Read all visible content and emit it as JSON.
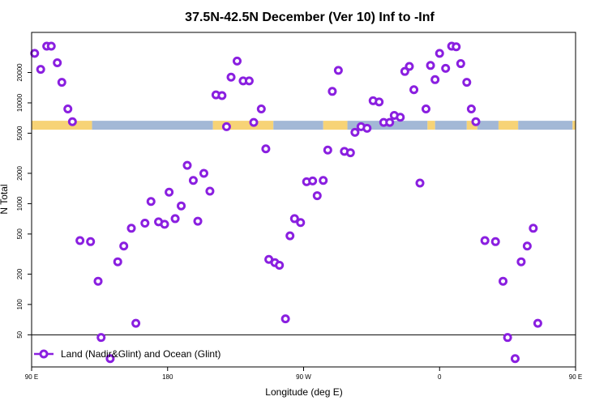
{
  "chart_data": {
    "type": "scatter",
    "title": "37.5N-42.5N December (Ver 10)   Inf to -Inf",
    "xlabel": "Longitude (deg E)",
    "ylabel": "N Total",
    "y_scale": "log",
    "xlim": [
      90,
      450
    ],
    "ylim": [
      24,
      50000
    ],
    "x_ticks": [
      {
        "value": 90,
        "label": "90 E"
      },
      {
        "value": 180,
        "label": "180"
      },
      {
        "value": 270,
        "label": "90 W"
      },
      {
        "value": 360,
        "label": "0"
      },
      {
        "value": 450,
        "label": "90 E"
      }
    ],
    "y_ticks": [
      50,
      100,
      200,
      500,
      1000,
      2000,
      5000,
      10000,
      20000
    ],
    "reference_line": 50,
    "band": {
      "y_value": 6000,
      "segments": [
        {
          "start": 90,
          "end": 130,
          "surface": "land"
        },
        {
          "start": 130,
          "end": 210,
          "surface": "ocean"
        },
        {
          "start": 210,
          "end": 250,
          "surface": "land"
        },
        {
          "start": 250,
          "end": 283,
          "surface": "ocean"
        },
        {
          "start": 283,
          "end": 299,
          "surface": "land"
        },
        {
          "start": 299,
          "end": 352,
          "surface": "ocean"
        },
        {
          "start": 352,
          "end": 357,
          "surface": "land"
        },
        {
          "start": 357,
          "end": 378,
          "surface": "ocean"
        },
        {
          "start": 378,
          "end": 385,
          "surface": "land"
        },
        {
          "start": 385,
          "end": 399,
          "surface": "ocean"
        },
        {
          "start": 399,
          "end": 412,
          "surface": "land"
        },
        {
          "start": 412,
          "end": 448,
          "surface": "ocean"
        },
        {
          "start": 448,
          "end": 450,
          "surface": "land"
        }
      ]
    },
    "colors": {
      "series": "#8a1fe0",
      "land": "#f7d376",
      "ocean": "#a3b8d6",
      "axis": "#000000"
    },
    "legend": {
      "position": "bottom-left"
    },
    "series": [
      {
        "name": "Land (Nadir&Glint) and Ocean (Glint)",
        "points": [
          {
            "x": 92,
            "y": 31000
          },
          {
            "x": 96,
            "y": 21500
          },
          {
            "x": 100,
            "y": 36500
          },
          {
            "x": 103,
            "y": 36500
          },
          {
            "x": 107,
            "y": 25000
          },
          {
            "x": 110,
            "y": 16000
          },
          {
            "x": 114,
            "y": 8700
          },
          {
            "x": 117,
            "y": 6500
          },
          {
            "x": 122,
            "y": 430
          },
          {
            "x": 129,
            "y": 420
          },
          {
            "x": 134,
            "y": 170
          },
          {
            "x": 136,
            "y": 47
          },
          {
            "x": 142,
            "y": 29
          },
          {
            "x": 147,
            "y": 265
          },
          {
            "x": 151,
            "y": 380
          },
          {
            "x": 156,
            "y": 570
          },
          {
            "x": 159,
            "y": 65
          },
          {
            "x": 165,
            "y": 640
          },
          {
            "x": 169,
            "y": 1050
          },
          {
            "x": 174,
            "y": 660
          },
          {
            "x": 178,
            "y": 625
          },
          {
            "x": 181,
            "y": 1300
          },
          {
            "x": 185,
            "y": 710
          },
          {
            "x": 189,
            "y": 950
          },
          {
            "x": 193,
            "y": 2400
          },
          {
            "x": 197,
            "y": 1700
          },
          {
            "x": 200,
            "y": 670
          },
          {
            "x": 204,
            "y": 2000
          },
          {
            "x": 208,
            "y": 1330
          },
          {
            "x": 212,
            "y": 12000
          },
          {
            "x": 216,
            "y": 11800
          },
          {
            "x": 219,
            "y": 5800
          },
          {
            "x": 222,
            "y": 18000
          },
          {
            "x": 226,
            "y": 26000
          },
          {
            "x": 230,
            "y": 16500
          },
          {
            "x": 234,
            "y": 16500
          },
          {
            "x": 237,
            "y": 6400
          },
          {
            "x": 242,
            "y": 8700
          },
          {
            "x": 245,
            "y": 3500
          },
          {
            "x": 247,
            "y": 280
          },
          {
            "x": 251,
            "y": 260
          },
          {
            "x": 254,
            "y": 245
          },
          {
            "x": 258,
            "y": 72
          },
          {
            "x": 261,
            "y": 480
          },
          {
            "x": 264,
            "y": 710
          },
          {
            "x": 268,
            "y": 650
          },
          {
            "x": 272,
            "y": 1650
          },
          {
            "x": 276,
            "y": 1680
          },
          {
            "x": 279,
            "y": 1200
          },
          {
            "x": 283,
            "y": 1700
          },
          {
            "x": 286,
            "y": 3400
          },
          {
            "x": 289,
            "y": 13000
          },
          {
            "x": 293,
            "y": 21000
          },
          {
            "x": 297,
            "y": 3300
          },
          {
            "x": 301,
            "y": 3200
          },
          {
            "x": 304,
            "y": 5100
          },
          {
            "x": 308,
            "y": 5800
          },
          {
            "x": 312,
            "y": 5600
          },
          {
            "x": 316,
            "y": 10500
          },
          {
            "x": 320,
            "y": 10200
          },
          {
            "x": 323,
            "y": 6400
          },
          {
            "x": 327,
            "y": 6400
          },
          {
            "x": 330,
            "y": 7500
          },
          {
            "x": 334,
            "y": 7200
          },
          {
            "x": 337,
            "y": 20500
          },
          {
            "x": 340,
            "y": 23000
          },
          {
            "x": 343,
            "y": 13500
          },
          {
            "x": 347,
            "y": 1600
          },
          {
            "x": 351,
            "y": 8700
          },
          {
            "x": 354,
            "y": 23500
          },
          {
            "x": 357,
            "y": 17000
          },
          {
            "x": 360,
            "y": 31000
          },
          {
            "x": 364,
            "y": 22000
          },
          {
            "x": 368,
            "y": 36500
          },
          {
            "x": 371,
            "y": 36000
          },
          {
            "x": 374,
            "y": 24500
          },
          {
            "x": 378,
            "y": 16000
          },
          {
            "x": 381,
            "y": 8700
          },
          {
            "x": 384,
            "y": 6500
          },
          {
            "x": 390,
            "y": 430
          },
          {
            "x": 397,
            "y": 420
          },
          {
            "x": 402,
            "y": 170
          },
          {
            "x": 405,
            "y": 47
          },
          {
            "x": 410,
            "y": 29
          },
          {
            "x": 414,
            "y": 265
          },
          {
            "x": 418,
            "y": 380
          },
          {
            "x": 422,
            "y": 570
          },
          {
            "x": 425,
            "y": 65
          }
        ]
      }
    ]
  }
}
